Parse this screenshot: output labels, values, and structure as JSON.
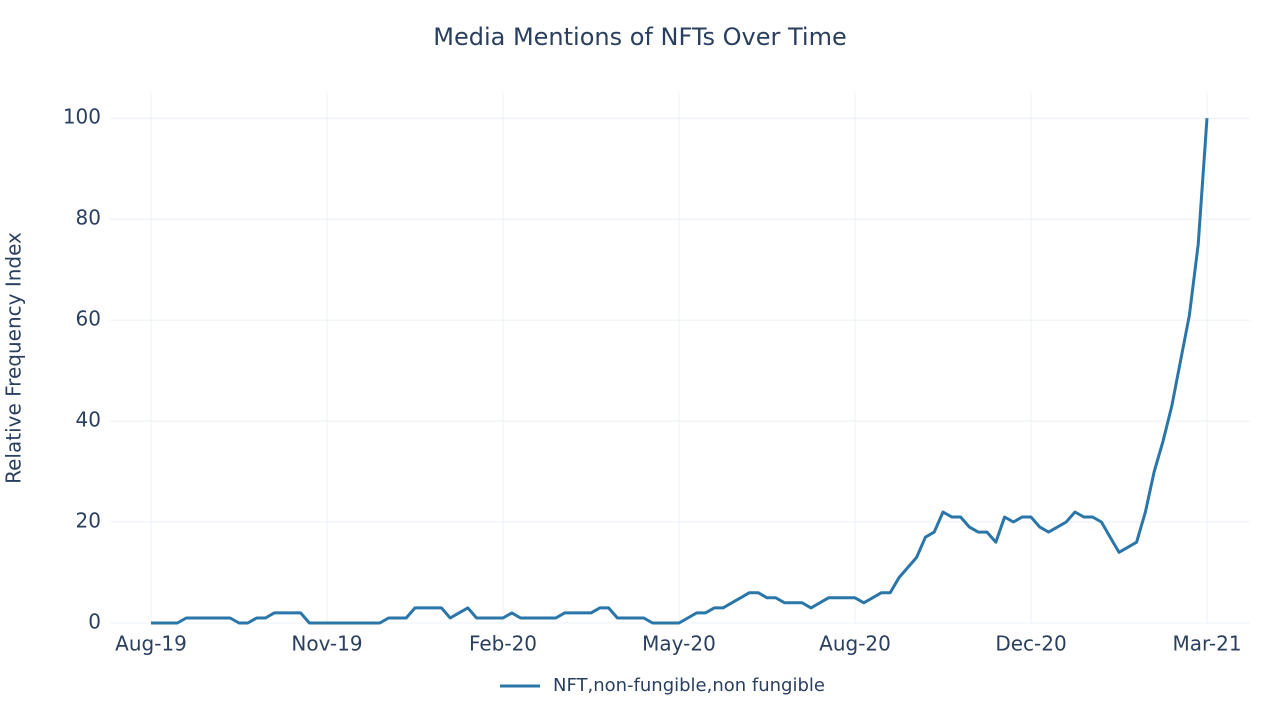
{
  "chart_data": {
    "type": "line",
    "title": "Media Mentions of NFTs Over Time",
    "y_label": "Relative Frequency Index",
    "categories": [
      "Aug-19",
      null,
      null,
      null,
      null,
      null,
      null,
      null,
      null,
      null,
      null,
      null,
      null,
      null,
      null,
      null,
      null,
      null,
      null,
      null,
      "Nov-19",
      null,
      null,
      null,
      null,
      null,
      null,
      null,
      null,
      null,
      null,
      null,
      null,
      null,
      null,
      null,
      null,
      null,
      null,
      null,
      "Feb-20",
      null,
      null,
      null,
      null,
      null,
      null,
      null,
      null,
      null,
      null,
      null,
      null,
      null,
      null,
      null,
      null,
      null,
      null,
      null,
      "May-20",
      null,
      null,
      null,
      null,
      null,
      null,
      null,
      null,
      null,
      null,
      null,
      null,
      null,
      null,
      null,
      null,
      null,
      null,
      null,
      "Aug-20",
      null,
      null,
      null,
      null,
      null,
      null,
      null,
      null,
      null,
      null,
      null,
      null,
      null,
      null,
      null,
      null,
      null,
      null,
      null,
      "Dec-20",
      null,
      null,
      null,
      null,
      null,
      null,
      null,
      null,
      null,
      null,
      null,
      null,
      null,
      null,
      null,
      null,
      null,
      null,
      null,
      "Mar-21"
    ],
    "series": [
      {
        "name": "NFT,non-fungible,non fungible",
        "color": "#2a76a8",
        "values": [
          0,
          0,
          0,
          0,
          1,
          1,
          1,
          1,
          1,
          1,
          0,
          0,
          1,
          1,
          2,
          2,
          2,
          2,
          0,
          0,
          0,
          0,
          0,
          0,
          0,
          0,
          0,
          1,
          1,
          1,
          3,
          3,
          3,
          3,
          1,
          2,
          3,
          1,
          1,
          1,
          1,
          2,
          1,
          1,
          1,
          1,
          1,
          2,
          2,
          2,
          2,
          3,
          3,
          1,
          1,
          1,
          1,
          0,
          0,
          0,
          0,
          1,
          2,
          2,
          3,
          3,
          4,
          5,
          6,
          6,
          5,
          5,
          4,
          4,
          4,
          3,
          4,
          5,
          5,
          5,
          5,
          4,
          5,
          6,
          6,
          9,
          11,
          13,
          17,
          18,
          22,
          21,
          21,
          19,
          18,
          18,
          16,
          21,
          20,
          21,
          21,
          19,
          18,
          19,
          20,
          22,
          21,
          21,
          20,
          17,
          14,
          15,
          16,
          22,
          30,
          36,
          43,
          52,
          61,
          75,
          100
        ]
      }
    ],
    "ylim": [
      0,
      105
    ],
    "yticks": [
      0,
      20,
      40,
      60,
      80,
      100
    ],
    "grid": true,
    "legend": "bottom"
  }
}
